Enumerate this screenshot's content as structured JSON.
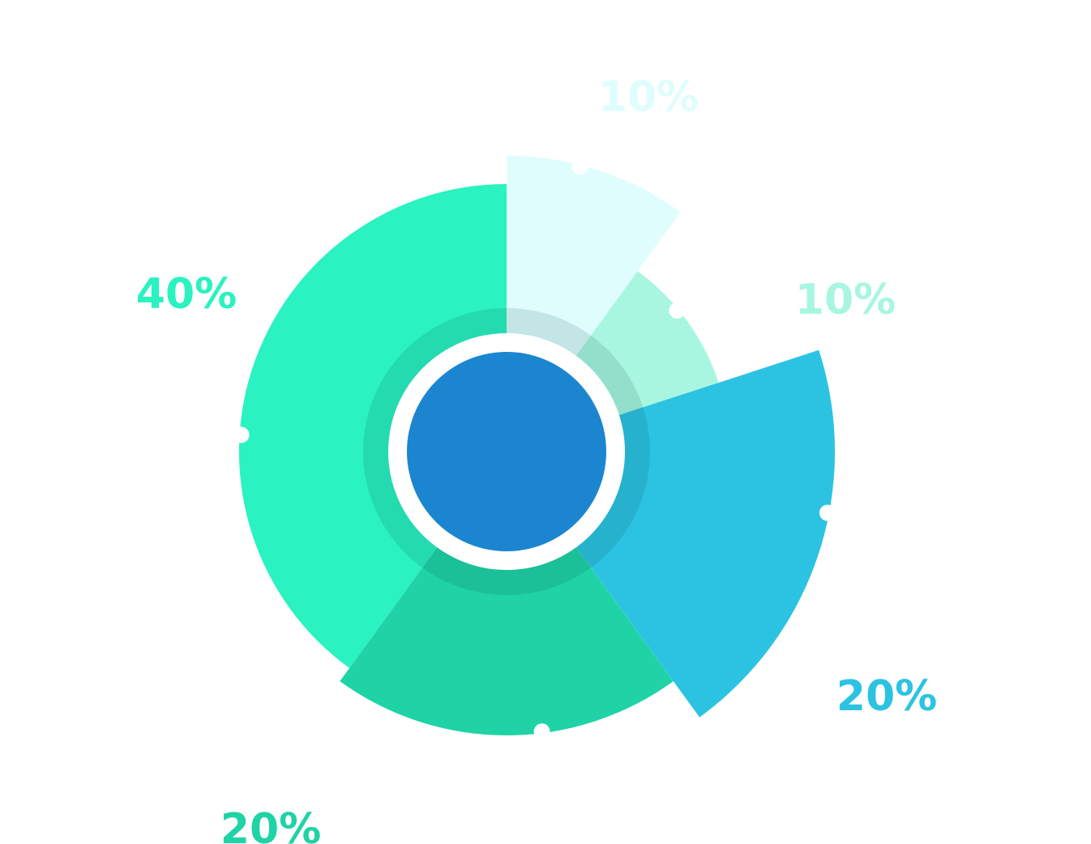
{
  "chart_data": {
    "type": "pie",
    "variant": "exploded-donut",
    "slices": [
      {
        "label": "10%",
        "value": 10,
        "color": "#E0FDFD"
      },
      {
        "label": "10%",
        "value": 10,
        "color": "#A8F6E0"
      },
      {
        "label": "20%",
        "value": 20,
        "color": "#2CC3E2"
      },
      {
        "label": "20%",
        "value": 20,
        "color": "#1FD3A6"
      },
      {
        "label": "40%",
        "value": 40,
        "color": "#2AF2C0"
      }
    ],
    "center_color": "#1B86CF",
    "legend": "none",
    "grid": false
  }
}
